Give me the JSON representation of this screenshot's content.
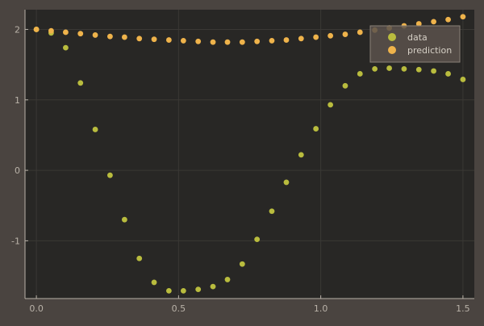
{
  "chart_data": {
    "type": "scatter",
    "title": "",
    "xlabel": "",
    "ylabel": "",
    "xlim": [
      -0.04,
      1.54
    ],
    "ylim": [
      -1.82,
      2.28
    ],
    "xticks": [
      0.0,
      0.5,
      1.0,
      1.5
    ],
    "xtick_labels": [
      "0.0",
      "0.5",
      "1.0",
      "1.5"
    ],
    "yticks": [
      -1,
      0,
      1,
      2
    ],
    "ytick_labels": [
      "-1",
      "0",
      "1",
      "2"
    ],
    "grid": true,
    "legend_position": "top-right",
    "series": [
      {
        "name": "data",
        "color": "#b9bc3e",
        "x": [
          0.0,
          0.052,
          0.103,
          0.155,
          0.207,
          0.259,
          0.31,
          0.362,
          0.414,
          0.466,
          0.517,
          0.569,
          0.621,
          0.672,
          0.724,
          0.776,
          0.828,
          0.879,
          0.931,
          0.983,
          1.034,
          1.086,
          1.138,
          1.19,
          1.241,
          1.293,
          1.345,
          1.397,
          1.448,
          1.5
        ],
        "y": [
          2.0,
          1.95,
          1.74,
          1.24,
          0.58,
          -0.07,
          -0.7,
          -1.25,
          -1.59,
          -1.71,
          -1.71,
          -1.69,
          -1.65,
          -1.55,
          -1.33,
          -0.98,
          -0.58,
          -0.17,
          0.22,
          0.59,
          0.93,
          1.2,
          1.37,
          1.44,
          1.45,
          1.44,
          1.43,
          1.41,
          1.37,
          1.29
        ]
      },
      {
        "name": "prediction",
        "color": "#efb34b",
        "x": [
          0.0,
          0.052,
          0.103,
          0.155,
          0.207,
          0.259,
          0.31,
          0.362,
          0.414,
          0.466,
          0.517,
          0.569,
          0.621,
          0.672,
          0.724,
          0.776,
          0.828,
          0.879,
          0.931,
          0.983,
          1.034,
          1.086,
          1.138,
          1.19,
          1.241,
          1.293,
          1.345,
          1.397,
          1.448,
          1.5
        ],
        "y": [
          2.0,
          1.98,
          1.96,
          1.94,
          1.92,
          1.9,
          1.89,
          1.87,
          1.86,
          1.85,
          1.84,
          1.83,
          1.82,
          1.82,
          1.82,
          1.83,
          1.84,
          1.85,
          1.87,
          1.89,
          1.91,
          1.93,
          1.96,
          1.99,
          2.02,
          2.05,
          2.08,
          2.11,
          2.14,
          2.18
        ]
      }
    ]
  },
  "colors": {
    "page_background": "#4a4440",
    "plot_background": "#282725",
    "grid": "#3a3835",
    "axis_text": "#b9b2a8",
    "legend_background": "#5a524c",
    "legend_border": "#8a8178",
    "legend_text": "#d6d0c6"
  }
}
